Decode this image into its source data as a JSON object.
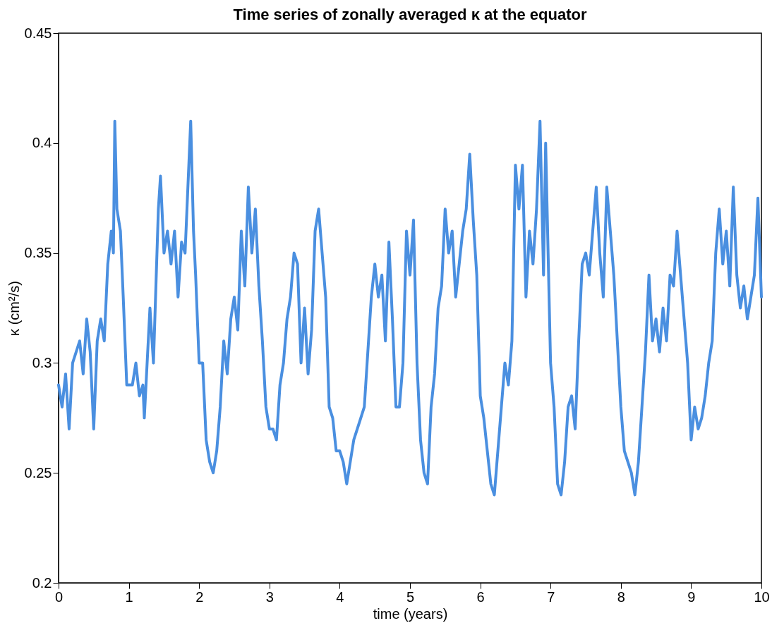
{
  "chart_data": {
    "type": "line",
    "title": "Time series of zonally averaged κ at the equator",
    "xlabel": "time (years)",
    "ylabel": "κ (cm²/s)",
    "xlim": [
      0,
      10
    ],
    "xticks": [
      0,
      1,
      2,
      3,
      4,
      5,
      6,
      7,
      8,
      9,
      10
    ],
    "ylim": [
      0.2,
      0.45
    ],
    "yticks": [
      0.2,
      0.25,
      0.3,
      0.35,
      0.4,
      0.45
    ],
    "grid": false,
    "marker": "none",
    "line_style": "solid",
    "series": [
      {
        "color": "#4a8fe0",
        "x": [
          0,
          0.05,
          0.1,
          0.15,
          0.2,
          0.3,
          0.35,
          0.4,
          0.45,
          0.5,
          0.55,
          0.6,
          0.65,
          0.7,
          0.75,
          0.78,
          0.8,
          0.83,
          0.88,
          0.92,
          0.97,
          1.05,
          1.1,
          1.15,
          1.2,
          1.22,
          1.3,
          1.35,
          1.42,
          1.45,
          1.5,
          1.55,
          1.6,
          1.65,
          1.7,
          1.75,
          1.8,
          1.88,
          1.92,
          1.95,
          2.0,
          2.05,
          2.1,
          2.15,
          2.2,
          2.25,
          2.3,
          2.35,
          2.4,
          2.45,
          2.5,
          2.55,
          2.6,
          2.65,
          2.7,
          2.75,
          2.8,
          2.85,
          2.9,
          2.95,
          3.0,
          3.05,
          3.1,
          3.15,
          3.2,
          3.25,
          3.3,
          3.35,
          3.4,
          3.45,
          3.5,
          3.55,
          3.6,
          3.65,
          3.7,
          3.75,
          3.8,
          3.85,
          3.9,
          3.95,
          4.0,
          4.05,
          4.1,
          4.15,
          4.2,
          4.25,
          4.3,
          4.35,
          4.45,
          4.5,
          4.55,
          4.6,
          4.65,
          4.7,
          4.75,
          4.8,
          4.85,
          4.9,
          4.95,
          5.0,
          5.05,
          5.1,
          5.15,
          5.2,
          5.25,
          5.3,
          5.35,
          5.4,
          5.45,
          5.5,
          5.55,
          5.6,
          5.65,
          5.7,
          5.75,
          5.8,
          5.85,
          5.9,
          5.95,
          6.0,
          6.05,
          6.1,
          6.15,
          6.2,
          6.25,
          6.3,
          6.35,
          6.4,
          6.45,
          6.5,
          6.55,
          6.6,
          6.65,
          6.7,
          6.75,
          6.8,
          6.85,
          6.9,
          6.93,
          7.0,
          7.05,
          7.1,
          7.15,
          7.2,
          7.25,
          7.3,
          7.35,
          7.4,
          7.45,
          7.5,
          7.55,
          7.6,
          7.65,
          7.7,
          7.75,
          7.8,
          7.85,
          7.9,
          7.95,
          8.0,
          8.05,
          8.1,
          8.15,
          8.2,
          8.25,
          8.3,
          8.35,
          8.4,
          8.45,
          8.5,
          8.55,
          8.6,
          8.65,
          8.7,
          8.75,
          8.8,
          8.85,
          8.9,
          8.95,
          9.0,
          9.05,
          9.1,
          9.15,
          9.2,
          9.25,
          9.3,
          9.35,
          9.4,
          9.45,
          9.5,
          9.55,
          9.6,
          9.65,
          9.7,
          9.75,
          9.8,
          9.85,
          9.9,
          9.95,
          10.0
        ],
        "values": [
          0.29,
          0.28,
          0.295,
          0.27,
          0.3,
          0.31,
          0.295,
          0.32,
          0.305,
          0.27,
          0.31,
          0.32,
          0.31,
          0.345,
          0.36,
          0.35,
          0.41,
          0.37,
          0.36,
          0.33,
          0.29,
          0.29,
          0.3,
          0.285,
          0.29,
          0.275,
          0.325,
          0.3,
          0.37,
          0.385,
          0.35,
          0.36,
          0.345,
          0.36,
          0.33,
          0.355,
          0.35,
          0.41,
          0.36,
          0.34,
          0.3,
          0.3,
          0.265,
          0.255,
          0.25,
          0.26,
          0.28,
          0.31,
          0.295,
          0.32,
          0.33,
          0.315,
          0.36,
          0.335,
          0.38,
          0.35,
          0.37,
          0.335,
          0.31,
          0.28,
          0.27,
          0.27,
          0.265,
          0.29,
          0.3,
          0.32,
          0.33,
          0.35,
          0.345,
          0.3,
          0.325,
          0.295,
          0.315,
          0.36,
          0.37,
          0.35,
          0.33,
          0.28,
          0.275,
          0.26,
          0.26,
          0.255,
          0.245,
          0.255,
          0.265,
          0.27,
          0.275,
          0.28,
          0.33,
          0.345,
          0.33,
          0.34,
          0.31,
          0.355,
          0.32,
          0.28,
          0.28,
          0.3,
          0.36,
          0.34,
          0.365,
          0.3,
          0.265,
          0.25,
          0.245,
          0.28,
          0.295,
          0.325,
          0.335,
          0.37,
          0.35,
          0.36,
          0.33,
          0.345,
          0.36,
          0.37,
          0.395,
          0.365,
          0.34,
          0.285,
          0.275,
          0.26,
          0.245,
          0.24,
          0.26,
          0.28,
          0.3,
          0.29,
          0.31,
          0.39,
          0.37,
          0.39,
          0.33,
          0.36,
          0.345,
          0.37,
          0.41,
          0.34,
          0.4,
          0.3,
          0.28,
          0.245,
          0.24,
          0.255,
          0.28,
          0.285,
          0.27,
          0.31,
          0.345,
          0.35,
          0.34,
          0.36,
          0.38,
          0.35,
          0.33,
          0.38,
          0.36,
          0.34,
          0.31,
          0.28,
          0.26,
          0.255,
          0.25,
          0.24,
          0.255,
          0.28,
          0.305,
          0.34,
          0.31,
          0.32,
          0.305,
          0.325,
          0.31,
          0.34,
          0.335,
          0.36,
          0.34,
          0.32,
          0.3,
          0.265,
          0.28,
          0.27,
          0.275,
          0.285,
          0.3,
          0.31,
          0.35,
          0.37,
          0.345,
          0.36,
          0.335,
          0.38,
          0.34,
          0.325,
          0.335,
          0.32,
          0.33,
          0.34,
          0.375,
          0.33
        ]
      }
    ]
  }
}
